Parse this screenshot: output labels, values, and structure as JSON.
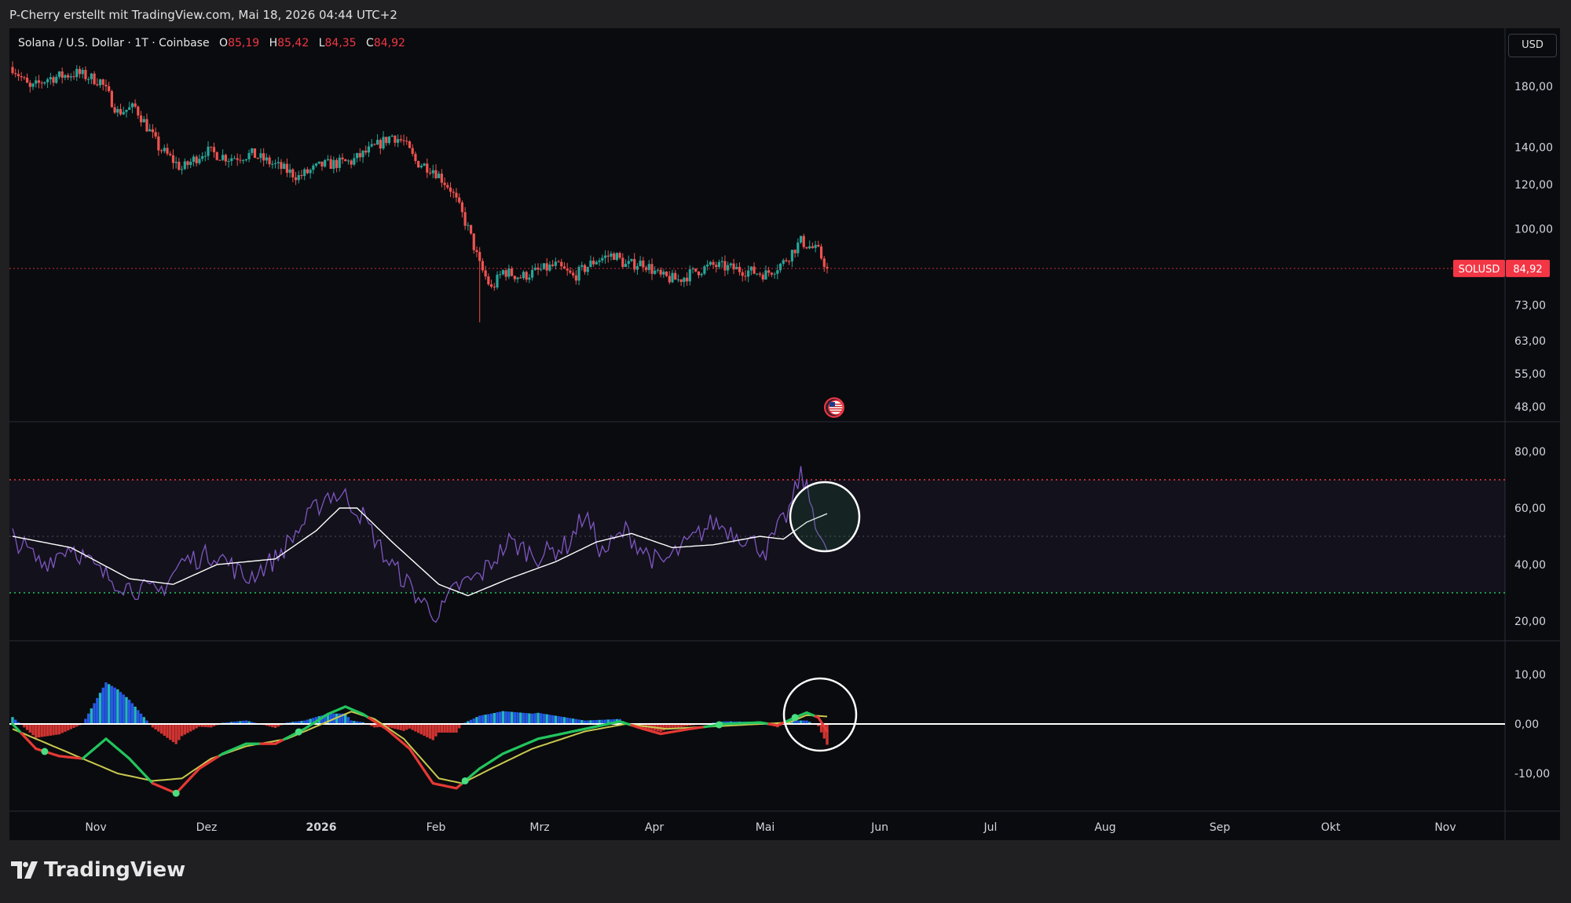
{
  "header": {
    "attribution": "P-Cherry erstellt mit TradingView.com, Mai 18, 2026 04:44 UTC+2"
  },
  "symbol": {
    "title": "Solana / U.S. Dollar · 1T · Coinbase",
    "open_key": "O",
    "open": "85,19",
    "high_key": "H",
    "high": "85,42",
    "low_key": "L",
    "low": "84,35",
    "close_key": "C",
    "close": "84,92",
    "currency": "USD",
    "ticker_label": "SOLUSD",
    "last_price_label": "84,92"
  },
  "branding": {
    "logo_text": "TradingView"
  },
  "colors": {
    "up": "#26a69a",
    "down": "#ef5350",
    "rsi_line": "#7e57c2",
    "rsi_ma": "#ffffff",
    "overbought": "#f23645",
    "oversold": "#22c55e",
    "macd_line": "#22c55e",
    "signal_line": "#c9c94f",
    "hist_pos": "#2962ff",
    "hist_neg": "#e53935",
    "price_tag": "#f23645"
  },
  "chart_data": {
    "type": "candlestick",
    "x_axis": {
      "labels": [
        "Nov",
        "Dez",
        "2026",
        "Feb",
        "Mrz",
        "Apr",
        "Mai",
        "Jun",
        "Jul",
        "Aug",
        "Sep",
        "Okt",
        "Nov"
      ],
      "bold": [
        false,
        false,
        true,
        false,
        false,
        false,
        false,
        false,
        false,
        false,
        false,
        false,
        false
      ]
    },
    "price_pane": {
      "scale": "log",
      "tick_labels": [
        "180,00",
        "140,00",
        "120,00",
        "100,00",
        "73,00",
        "63,00",
        "55,00",
        "48,00"
      ],
      "tick_values": [
        180,
        140,
        120,
        100,
        73,
        63,
        55,
        48
      ],
      "last_price": 84.92,
      "anchors": [
        [
          0,
          195
        ],
        [
          6,
          178
        ],
        [
          12,
          186
        ],
        [
          22,
          190
        ],
        [
          30,
          184
        ],
        [
          36,
          162
        ],
        [
          42,
          165
        ],
        [
          50,
          140
        ],
        [
          58,
          128
        ],
        [
          66,
          138
        ],
        [
          74,
          134
        ],
        [
          82,
          136
        ],
        [
          90,
          130
        ],
        [
          98,
          124
        ],
        [
          106,
          130
        ],
        [
          116,
          132
        ],
        [
          124,
          140
        ],
        [
          130,
          147
        ],
        [
          134,
          143
        ],
        [
          138,
          132
        ],
        [
          144,
          128
        ],
        [
          150,
          118
        ],
        [
          156,
          100
        ],
        [
          160,
          86
        ],
        [
          164,
          78
        ],
        [
          168,
          84
        ],
        [
          174,
          82
        ],
        [
          180,
          84
        ],
        [
          186,
          86
        ],
        [
          192,
          82
        ],
        [
          200,
          88
        ],
        [
          206,
          90
        ],
        [
          210,
          86
        ],
        [
          216,
          87
        ],
        [
          222,
          82
        ],
        [
          228,
          81
        ],
        [
          234,
          84
        ],
        [
          240,
          86
        ],
        [
          246,
          85
        ],
        [
          252,
          84
        ],
        [
          258,
          83
        ],
        [
          264,
          87
        ],
        [
          270,
          95
        ],
        [
          276,
          91
        ],
        [
          279,
          85
        ]
      ],
      "candle_count": 280
    },
    "rsi_pane": {
      "tick_labels": [
        "80,00",
        "60,00",
        "40,00",
        "20,00"
      ],
      "tick_values": [
        80,
        60,
        40,
        20
      ],
      "overbought": 70,
      "midline": 50,
      "oversold": 30,
      "rsi_anchors": [
        [
          0,
          50
        ],
        [
          10,
          40
        ],
        [
          20,
          47
        ],
        [
          30,
          37
        ],
        [
          40,
          32
        ],
        [
          50,
          30
        ],
        [
          58,
          41
        ],
        [
          70,
          44
        ],
        [
          80,
          35
        ],
        [
          90,
          42
        ],
        [
          100,
          55
        ],
        [
          108,
          65
        ],
        [
          114,
          64
        ],
        [
          120,
          57
        ],
        [
          128,
          42
        ],
        [
          134,
          35
        ],
        [
          140,
          27
        ],
        [
          146,
          22
        ],
        [
          152,
          32
        ],
        [
          160,
          36
        ],
        [
          170,
          48
        ],
        [
          180,
          43
        ],
        [
          190,
          47
        ],
        [
          196,
          58
        ],
        [
          202,
          44
        ],
        [
          210,
          52
        ],
        [
          216,
          45
        ],
        [
          222,
          40
        ],
        [
          232,
          48
        ],
        [
          240,
          55
        ],
        [
          250,
          50
        ],
        [
          258,
          45
        ],
        [
          266,
          59
        ],
        [
          270,
          72
        ],
        [
          274,
          60
        ],
        [
          279,
          42
        ]
      ],
      "ma_anchors": [
        [
          0,
          50
        ],
        [
          20,
          46
        ],
        [
          40,
          35
        ],
        [
          55,
          33
        ],
        [
          70,
          40
        ],
        [
          90,
          42
        ],
        [
          104,
          52
        ],
        [
          112,
          60
        ],
        [
          118,
          60
        ],
        [
          130,
          48
        ],
        [
          146,
          33
        ],
        [
          156,
          29
        ],
        [
          170,
          35
        ],
        [
          186,
          41
        ],
        [
          200,
          48
        ],
        [
          212,
          51
        ],
        [
          226,
          46
        ],
        [
          240,
          47
        ],
        [
          256,
          50
        ],
        [
          264,
          49
        ],
        [
          272,
          55
        ],
        [
          279,
          58
        ]
      ]
    },
    "macd_pane": {
      "tick_labels": [
        "10,00",
        "0,00",
        "-10,00"
      ],
      "tick_values": [
        10,
        0,
        -10
      ],
      "macd_anchors": [
        [
          0,
          0
        ],
        [
          8,
          -5
        ],
        [
          16,
          -6.5
        ],
        [
          24,
          -7
        ],
        [
          32,
          -3
        ],
        [
          40,
          -7
        ],
        [
          48,
          -12
        ],
        [
          56,
          -14
        ],
        [
          64,
          -9
        ],
        [
          72,
          -6
        ],
        [
          80,
          -4
        ],
        [
          90,
          -4
        ],
        [
          100,
          -1
        ],
        [
          108,
          2
        ],
        [
          114,
          3.5
        ],
        [
          120,
          2
        ],
        [
          128,
          -1
        ],
        [
          136,
          -5
        ],
        [
          144,
          -12
        ],
        [
          152,
          -13
        ],
        [
          160,
          -9
        ],
        [
          168,
          -6
        ],
        [
          180,
          -3
        ],
        [
          196,
          -1
        ],
        [
          208,
          0.5
        ],
        [
          216,
          -1
        ],
        [
          222,
          -2
        ],
        [
          232,
          -1
        ],
        [
          244,
          0
        ],
        [
          256,
          0.3
        ],
        [
          262,
          -0.3
        ],
        [
          268,
          1.3
        ],
        [
          272,
          2.3
        ],
        [
          276,
          1.3
        ],
        [
          279,
          -1.5
        ]
      ],
      "signal_anchors": [
        [
          0,
          -1
        ],
        [
          12,
          -4
        ],
        [
          24,
          -7
        ],
        [
          36,
          -10
        ],
        [
          48,
          -11.5
        ],
        [
          58,
          -11
        ],
        [
          68,
          -7
        ],
        [
          80,
          -4.5
        ],
        [
          94,
          -3
        ],
        [
          106,
          0
        ],
        [
          116,
          2.5
        ],
        [
          124,
          1
        ],
        [
          134,
          -3
        ],
        [
          146,
          -11
        ],
        [
          154,
          -12
        ],
        [
          164,
          -9
        ],
        [
          178,
          -5
        ],
        [
          196,
          -1.5
        ],
        [
          210,
          0
        ],
        [
          224,
          -1
        ],
        [
          240,
          -0.5
        ],
        [
          256,
          0
        ],
        [
          266,
          0.3
        ],
        [
          272,
          1.8
        ],
        [
          279,
          1.5
        ]
      ],
      "highlight_markers": [
        11,
        56,
        98,
        155,
        242,
        268
      ]
    }
  }
}
